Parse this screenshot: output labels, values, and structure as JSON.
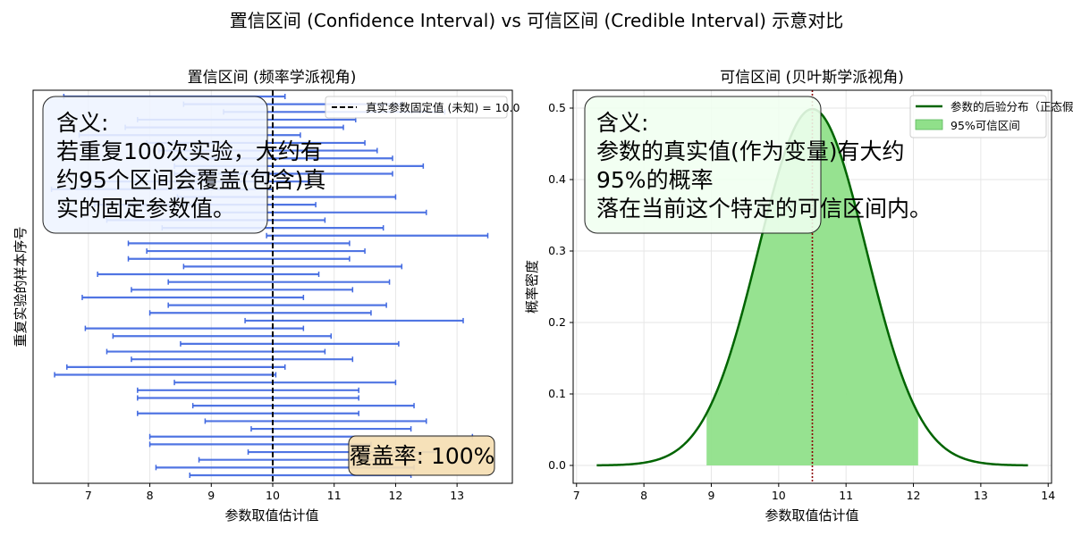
{
  "figure": {
    "suptitle": "置信区间 (Confidence Interval) vs 可信区间 (Credible Interval) 示意对比"
  },
  "chart_data": [
    {
      "type": "errorbar",
      "title": "置信区间 (频率学派视角)",
      "xlabel": "参数取值估计值",
      "ylabel": "重复实验的样本序号",
      "xlim": [
        6.1,
        13.9
      ],
      "xticks": [
        7,
        8,
        9,
        10,
        11,
        12,
        13
      ],
      "grid": true,
      "true_value": 10.0,
      "legend": {
        "position": "top-right",
        "entries": [
          "真实参数固定值 (未知) = 10.0"
        ]
      },
      "intervals": [
        [
          8.65,
          12.25
        ],
        [
          8.1,
          12.3
        ],
        [
          8.8,
          12.4
        ],
        [
          9.6,
          12.7
        ],
        [
          8.0,
          11.6
        ],
        [
          8.0,
          13.25
        ],
        [
          9.65,
          12.25
        ],
        [
          8.9,
          12.5
        ],
        [
          7.8,
          11.4
        ],
        [
          8.7,
          12.3
        ],
        [
          7.8,
          11.4
        ],
        [
          7.8,
          11.4
        ],
        [
          8.4,
          12.0
        ],
        [
          6.45,
          10.05
        ],
        [
          6.65,
          10.2
        ],
        [
          7.7,
          11.3
        ],
        [
          7.3,
          10.85
        ],
        [
          8.5,
          12.05
        ],
        [
          7.4,
          10.95
        ],
        [
          6.95,
          10.5
        ],
        [
          9.55,
          13.1
        ],
        [
          8.0,
          11.6
        ],
        [
          8.3,
          11.85
        ],
        [
          6.9,
          10.5
        ],
        [
          7.7,
          11.3
        ],
        [
          8.3,
          11.9
        ],
        [
          7.15,
          10.75
        ],
        [
          8.55,
          12.1
        ],
        [
          7.65,
          11.25
        ],
        [
          7.95,
          11.5
        ],
        [
          7.65,
          11.25
        ],
        [
          9.9,
          13.5
        ],
        [
          8.2,
          11.8
        ],
        [
          7.3,
          10.85
        ],
        [
          8.95,
          12.5
        ],
        [
          7.1,
          10.7
        ],
        [
          8.45,
          12.0
        ],
        [
          6.4,
          10.0
        ],
        [
          7.0,
          10.6
        ],
        [
          8.4,
          11.95
        ],
        [
          8.4,
          12.45
        ],
        [
          8.4,
          11.95
        ],
        [
          8.15,
          11.7
        ],
        [
          7.95,
          11.5
        ],
        [
          6.85,
          10.45
        ],
        [
          7.6,
          11.15
        ],
        [
          7.8,
          11.35
        ],
        [
          9.2,
          12.8
        ],
        [
          8.55,
          12.1
        ],
        [
          6.6,
          10.2
        ]
      ],
      "annotation_text": "含义:\n若重复100次实验，大约有\n约95个区间会覆盖(包含)真\n实的固定参数值。",
      "coverage_text": "覆盖率: 100%"
    },
    {
      "type": "area",
      "title": "可信区间 (贝叶斯学派视角)",
      "xlabel": "参数取值估计值",
      "ylabel": "概率密度",
      "xlim": [
        6.95,
        14.05
      ],
      "ylim": [
        -0.025,
        0.525
      ],
      "xticks": [
        7,
        8,
        9,
        10,
        11,
        12,
        13,
        14
      ],
      "yticks": [
        0.0,
        0.1,
        0.2,
        0.3,
        0.4,
        0.5
      ],
      "grid": true,
      "posterior": {
        "mean": 10.5,
        "sd": 0.8,
        "x_range": [
          7.3,
          13.7
        ]
      },
      "credible_interval": [
        8.93,
        12.07
      ],
      "legend": {
        "position": "top-right",
        "entries": [
          "参数的后验分布（正态假设）",
          "95%可信区间"
        ]
      },
      "annotation_text": "含义:\n参数的真实值(作为变量)有大约\n95%的概率\n落在当前这个特定的可信区间内。",
      "colors": {
        "line": "#006400",
        "fill": "#90e08a",
        "mean_line": "#8b0000"
      }
    }
  ]
}
